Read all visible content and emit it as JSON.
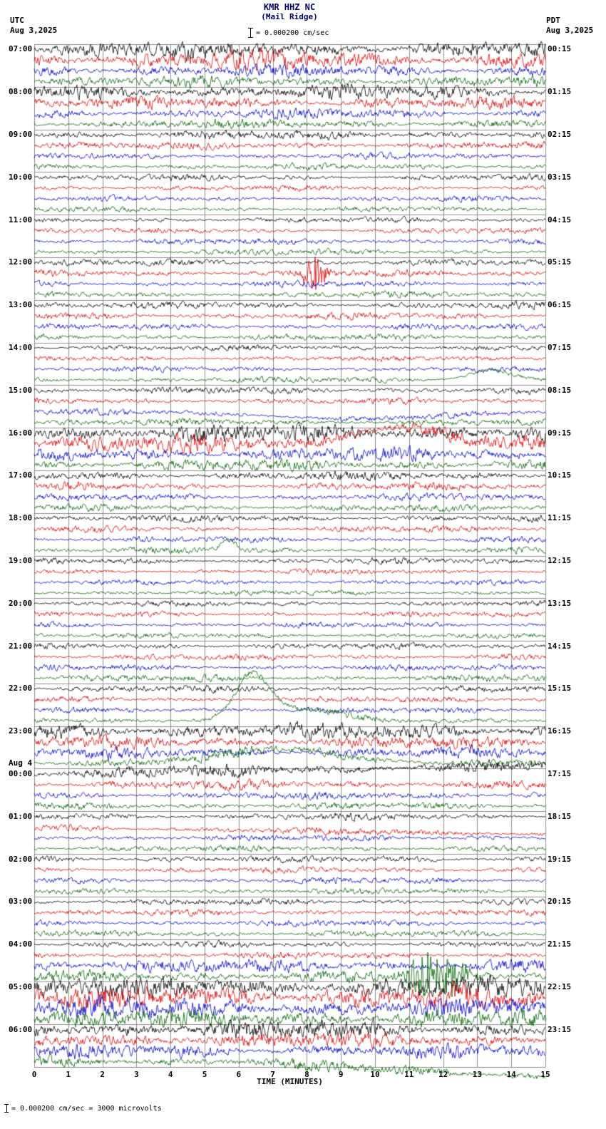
{
  "header": {
    "station": "KMR HHZ NC",
    "location": "(Mail Ridge)",
    "scale_label": "= 0.000200 cm/sec",
    "utc_label": "UTC",
    "utc_date": "Aug 3,2025",
    "pdt_label": "PDT",
    "pdt_date": "Aug 3,2025"
  },
  "footer": {
    "note": "= 0.000200 cm/sec =   3000 microvolts"
  },
  "chart_data": {
    "type": "line",
    "title": "KMR HHZ NC (Mail Ridge) helicorder",
    "xlabel": "TIME (MINUTES)",
    "ylabel": "",
    "x_range": [
      0,
      15
    ],
    "x_ticks": [
      "0",
      "1",
      "2",
      "3",
      "4",
      "5",
      "6",
      "7",
      "8",
      "9",
      "10",
      "11",
      "12",
      "13",
      "14",
      "15"
    ],
    "minutes_per_line": 15,
    "lines_per_hour": 4,
    "total_lines": 96,
    "grid": true,
    "trace_colors": [
      "#000000",
      "#dd0000",
      "#0000cc",
      "#006600"
    ],
    "utc_hour_labels": [
      {
        "label": "07:00"
      },
      {
        "label": "08:00"
      },
      {
        "label": "09:00"
      },
      {
        "label": "10:00"
      },
      {
        "label": "11:00"
      },
      {
        "label": "12:00"
      },
      {
        "label": "13:00"
      },
      {
        "label": "14:00"
      },
      {
        "label": "15:00"
      },
      {
        "label": "16:00"
      },
      {
        "label": "17:00"
      },
      {
        "label": "18:00"
      },
      {
        "label": "19:00"
      },
      {
        "label": "20:00"
      },
      {
        "label": "21:00"
      },
      {
        "label": "22:00"
      },
      {
        "label": "23:00"
      },
      {
        "label": "00:00",
        "date_note": "Aug 4"
      },
      {
        "label": "01:00"
      },
      {
        "label": "02:00"
      },
      {
        "label": "03:00"
      },
      {
        "label": "04:00"
      },
      {
        "label": "05:00"
      },
      {
        "label": "06:00"
      }
    ],
    "pdt_hour_labels": [
      "00:15",
      "01:15",
      "02:15",
      "03:15",
      "04:15",
      "05:15",
      "06:15",
      "07:15",
      "08:15",
      "09:15",
      "10:15",
      "11:15",
      "12:15",
      "13:15",
      "14:15",
      "15:15",
      "16:15",
      "17:15",
      "18:15",
      "19:15",
      "20:15",
      "21:15",
      "22:15",
      "23:15"
    ],
    "amplitudes": [
      2.2,
      2.4,
      1.6,
      1.5,
      1.9,
      1.6,
      1.3,
      1.2,
      1.2,
      1.0,
      0.8,
      0.8,
      0.8,
      0.7,
      0.7,
      0.7,
      0.7,
      0.7,
      0.8,
      0.8,
      0.8,
      0.9,
      0.8,
      0.8,
      0.9,
      0.9,
      0.8,
      0.8,
      0.8,
      0.7,
      0.7,
      0.8,
      0.9,
      0.8,
      0.8,
      0.9,
      2.4,
      2.2,
      1.8,
      1.5,
      1.2,
      1.0,
      0.9,
      0.9,
      0.9,
      0.8,
      0.8,
      0.8,
      0.8,
      0.7,
      0.7,
      0.7,
      0.7,
      0.7,
      0.7,
      0.7,
      0.8,
      0.8,
      0.8,
      0.9,
      0.9,
      0.8,
      0.8,
      0.9,
      2.2,
      1.6,
      1.4,
      1.3,
      1.6,
      1.2,
      1.0,
      0.9,
      0.9,
      0.9,
      0.8,
      0.8,
      0.9,
      0.8,
      0.8,
      0.8,
      0.8,
      0.8,
      0.8,
      0.8,
      0.8,
      0.9,
      1.8,
      1.6,
      2.8,
      3.0,
      2.6,
      2.4,
      2.4,
      2.0,
      1.8,
      1.4
    ],
    "events": [
      {
        "row": 21,
        "type": "burst",
        "minute": 8.2,
        "width": 0.35,
        "amp": 26
      },
      {
        "row": 31,
        "type": "lp",
        "minute": 13.4,
        "width": 0.8,
        "amp": 14
      },
      {
        "row": 34,
        "type": "lp",
        "minute": 9.5,
        "width": 3.5,
        "amp": -10
      },
      {
        "row": 37,
        "type": "lp",
        "minute": 10.8,
        "width": 1.8,
        "amp": 24
      },
      {
        "row": 47,
        "type": "lp",
        "minute": 5.7,
        "width": 0.3,
        "amp": 16
      },
      {
        "row": 63,
        "type": "lp",
        "minute": 6.4,
        "width": 0.7,
        "amp": 62
      },
      {
        "row": 63,
        "type": "lp",
        "minute": 7.9,
        "width": 1.5,
        "amp": 16
      },
      {
        "row": 67,
        "type": "lp",
        "minute": 7.2,
        "width": 2.5,
        "amp": 20
      },
      {
        "row": 68,
        "type": "drift",
        "minute": 0,
        "width": 15,
        "amp": 12
      },
      {
        "row": 73,
        "type": "drift",
        "minute": 0,
        "width": 15,
        "amp": -10
      },
      {
        "row": 87,
        "type": "burst",
        "minute": 11.5,
        "width": 0.55,
        "amp": 34
      },
      {
        "row": 87,
        "type": "burst",
        "minute": 12.3,
        "width": 0.35,
        "amp": 26
      },
      {
        "row": 95,
        "type": "drift",
        "minute": 6,
        "width": 9,
        "amp": -22
      }
    ]
  }
}
